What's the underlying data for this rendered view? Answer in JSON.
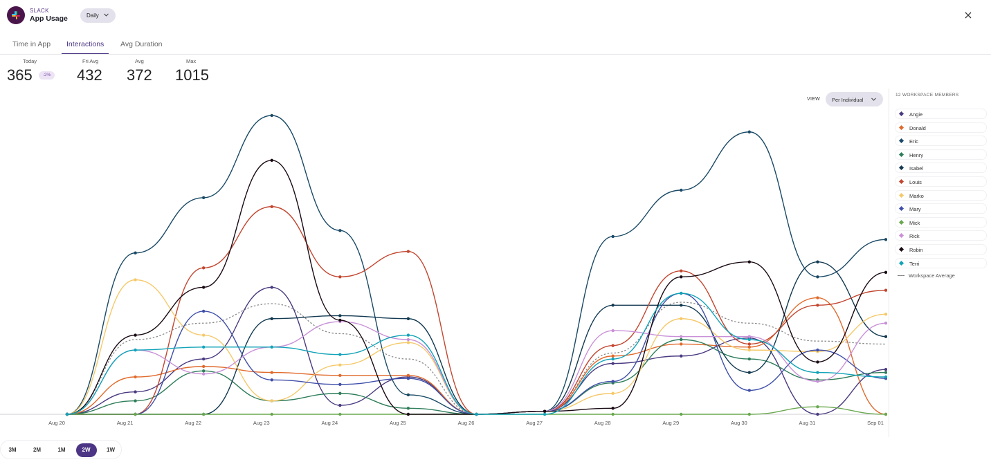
{
  "header": {
    "brand": "SLACK",
    "title": "App Usage",
    "period": "Daily"
  },
  "tabs": [
    "Time in App",
    "Interactions",
    "Avg Duration"
  ],
  "active_tab": "Interactions",
  "stats": {
    "today": {
      "label": "Today",
      "value": "365",
      "change": "-2%"
    },
    "fri_avg": {
      "label": "Fri Avg",
      "value": "432"
    },
    "avg": {
      "label": "Avg",
      "value": "372"
    },
    "max": {
      "label": "Max",
      "value": "1015"
    }
  },
  "view": {
    "label": "VIEW",
    "value": "Per Individual"
  },
  "legend": {
    "title": "12 WORKSPACE MEMBERS",
    "average_label": "Workspace Average"
  },
  "range": {
    "options": [
      "3M",
      "2M",
      "1M",
      "2W",
      "1W"
    ],
    "active": "2W"
  },
  "chart_data": {
    "type": "line",
    "x": [
      "Aug 20",
      "Aug 21",
      "Aug 22",
      "Aug 23",
      "Aug 24",
      "Aug 25",
      "Aug 26",
      "Aug 27",
      "Aug 28",
      "Aug 29",
      "Aug 30",
      "Aug 31",
      "Sep 01"
    ],
    "ylim": [
      0,
      1000
    ],
    "series": [
      {
        "name": "Angie",
        "color": "#4a3a80",
        "values": [
          0,
          75,
          185,
          425,
          30,
          125,
          0,
          10,
          170,
          195,
          255,
          0,
          150
        ]
      },
      {
        "name": "Donald",
        "color": "#e06a2c",
        "values": [
          0,
          125,
          160,
          140,
          130,
          130,
          0,
          10,
          195,
          235,
          225,
          390,
          0
        ]
      },
      {
        "name": "Eric",
        "color": "#1a4a66",
        "values": [
          0,
          540,
          725,
          1000,
          615,
          65,
          0,
          10,
          595,
          750,
          945,
          460,
          585
        ]
      },
      {
        "name": "Henry",
        "color": "#2e7d5a",
        "values": [
          0,
          45,
          145,
          45,
          70,
          20,
          0,
          10,
          105,
          250,
          185,
          115,
          140
        ]
      },
      {
        "name": "Isabel",
        "color": "#123a52",
        "values": [
          0,
          0,
          0,
          320,
          330,
          320,
          0,
          10,
          365,
          365,
          140,
          510,
          260
        ]
      },
      {
        "name": "Louis",
        "color": "#c2462f",
        "values": [
          0,
          0,
          490,
          695,
          460,
          545,
          0,
          10,
          230,
          480,
          235,
          365,
          415
        ]
      },
      {
        "name": "Marko",
        "color": "#f5c96a",
        "values": [
          0,
          450,
          265,
          45,
          165,
          240,
          0,
          10,
          70,
          320,
          215,
          210,
          335
        ]
      },
      {
        "name": "Mary",
        "color": "#3f4fa8",
        "values": [
          0,
          0,
          345,
          115,
          100,
          120,
          0,
          10,
          110,
          405,
          80,
          215,
          120
        ]
      },
      {
        "name": "Mick",
        "color": "#6aa84f",
        "values": [
          0,
          0,
          0,
          0,
          0,
          0,
          0,
          0,
          0,
          0,
          0,
          25,
          0
        ]
      },
      {
        "name": "Rick",
        "color": "#c991d8",
        "values": [
          0,
          215,
          135,
          225,
          310,
          250,
          0,
          10,
          280,
          260,
          260,
          110,
          305
        ]
      },
      {
        "name": "Robin",
        "color": "#1a0a14",
        "values": [
          0,
          265,
          425,
          850,
          315,
          0,
          0,
          10,
          20,
          460,
          510,
          175,
          475
        ]
      },
      {
        "name": "Terri",
        "color": "#12a3b8",
        "values": [
          0,
          215,
          225,
          225,
          200,
          265,
          0,
          0,
          185,
          405,
          250,
          140,
          125
        ]
      }
    ],
    "average": {
      "name": "Workspace Average",
      "values": [
        0,
        250,
        305,
        370,
        270,
        185,
        0,
        10,
        205,
        375,
        305,
        245,
        235
      ]
    }
  }
}
